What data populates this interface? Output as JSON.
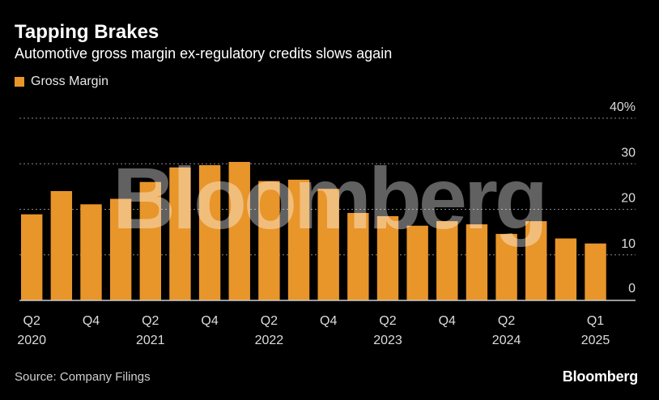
{
  "header": {
    "title": "Tapping Brakes",
    "subtitle": "Automotive gross margin ex-regulatory credits slows again"
  },
  "legend": {
    "label": "Gross Margin",
    "color": "#e8952a"
  },
  "watermark": "Bloomberg",
  "footer": {
    "source": "Source: Company Filings",
    "brand": "Bloomberg"
  },
  "colors": {
    "background": "#000000",
    "bar": "#e8952a",
    "grid": "#8a8a8a",
    "axis": "#cccccc",
    "watermark": "rgba(255,255,255,0.38)"
  },
  "chart_data": {
    "type": "bar",
    "title": "Tapping Brakes",
    "subtitle": "Automotive gross margin ex-regulatory credits slows again",
    "xlabel": "",
    "ylabel": "",
    "ylim": [
      0,
      40
    ],
    "yticks": [
      0,
      10,
      20,
      30,
      40
    ],
    "ytick_labels": [
      "0",
      "10",
      "20",
      "30",
      "40%"
    ],
    "grid": true,
    "legend_position": "top-left",
    "series": [
      {
        "name": "Gross Margin",
        "values": [
          18.9,
          24.0,
          21.1,
          22.3,
          26.0,
          29.2,
          29.7,
          30.4,
          26.2,
          26.5,
          24.5,
          19.2,
          18.5,
          16.4,
          17.4,
          16.7,
          14.6,
          17.4,
          13.6,
          12.5
        ]
      }
    ],
    "categories": [
      "Q2 2020",
      "Q3 2020",
      "Q4 2020",
      "Q1 2021",
      "Q2 2021",
      "Q3 2021",
      "Q4 2021",
      "Q1 2022",
      "Q2 2022",
      "Q3 2022",
      "Q4 2022",
      "Q1 2023",
      "Q2 2023",
      "Q3 2023",
      "Q4 2023",
      "Q1 2024",
      "Q2 2024",
      "Q3 2024",
      "Q4 2024",
      "Q1 2025"
    ],
    "x_tick_labels": [
      {
        "index": 0,
        "line1": "Q2",
        "line2": "2020"
      },
      {
        "index": 2,
        "line1": "Q4",
        "line2": ""
      },
      {
        "index": 4,
        "line1": "Q2",
        "line2": "2021"
      },
      {
        "index": 6,
        "line1": "Q4",
        "line2": ""
      },
      {
        "index": 8,
        "line1": "Q2",
        "line2": "2022"
      },
      {
        "index": 10,
        "line1": "Q4",
        "line2": ""
      },
      {
        "index": 12,
        "line1": "Q2",
        "line2": "2023"
      },
      {
        "index": 14,
        "line1": "Q4",
        "line2": ""
      },
      {
        "index": 16,
        "line1": "Q2",
        "line2": "2024"
      },
      {
        "index": 19,
        "line1": "Q1",
        "line2": "2025"
      }
    ]
  }
}
